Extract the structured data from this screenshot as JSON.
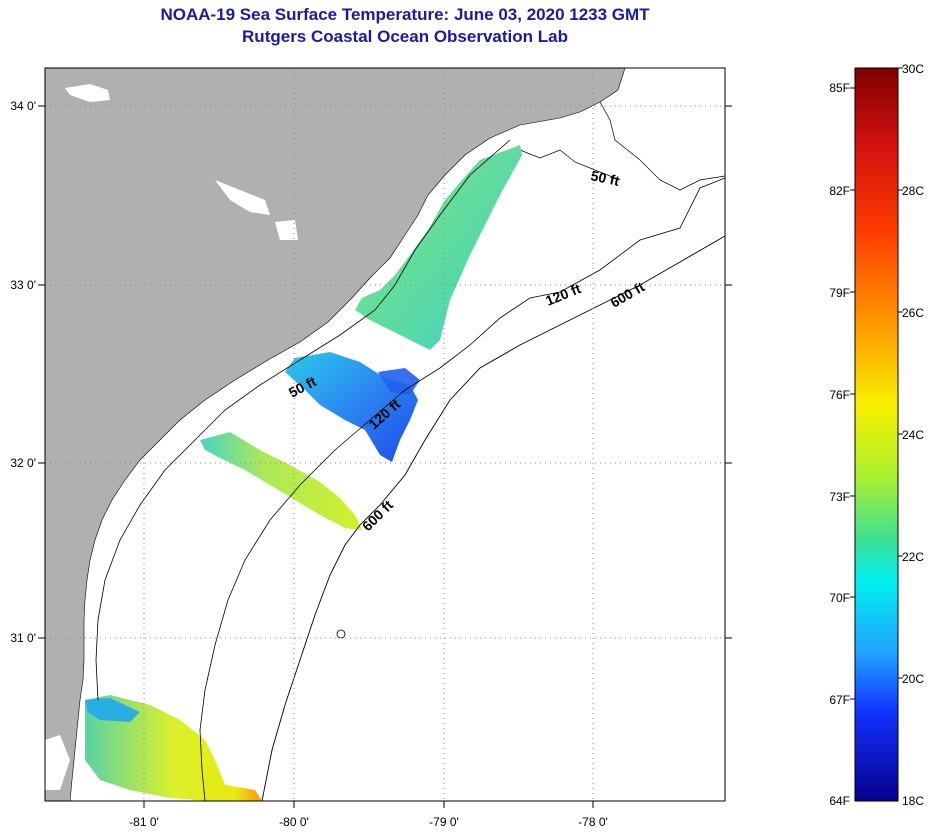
{
  "title_line_1": "NOAA-19 Sea Surface Temperature:  June 03, 2020 1233 GMT",
  "title_line_2": "Rutgers Coastal Ocean Observation Lab",
  "lat_ticks": [
    "34 0'",
    "33 0'",
    "32 0'",
    "31 0'"
  ],
  "lon_ticks": [
    "-81 0'",
    "-80 0'",
    "-79 0'",
    "-78 0'"
  ],
  "depth_labels": [
    "50 ft",
    "120 ft",
    "600 ft",
    "50 ft",
    "120 ft",
    "600 ft"
  ],
  "colorbar": {
    "fahrenheit_labels": [
      "85F",
      "82F",
      "79F",
      "76F",
      "73F",
      "70F",
      "67F",
      "64F"
    ],
    "celsius_labels": [
      "30C",
      "28C",
      "26C",
      "24C",
      "22C",
      "20C",
      "18C"
    ]
  },
  "colors": {
    "land": "#b0b0b0",
    "ocean": "#ffffff",
    "title": "#1a1aa8"
  }
}
